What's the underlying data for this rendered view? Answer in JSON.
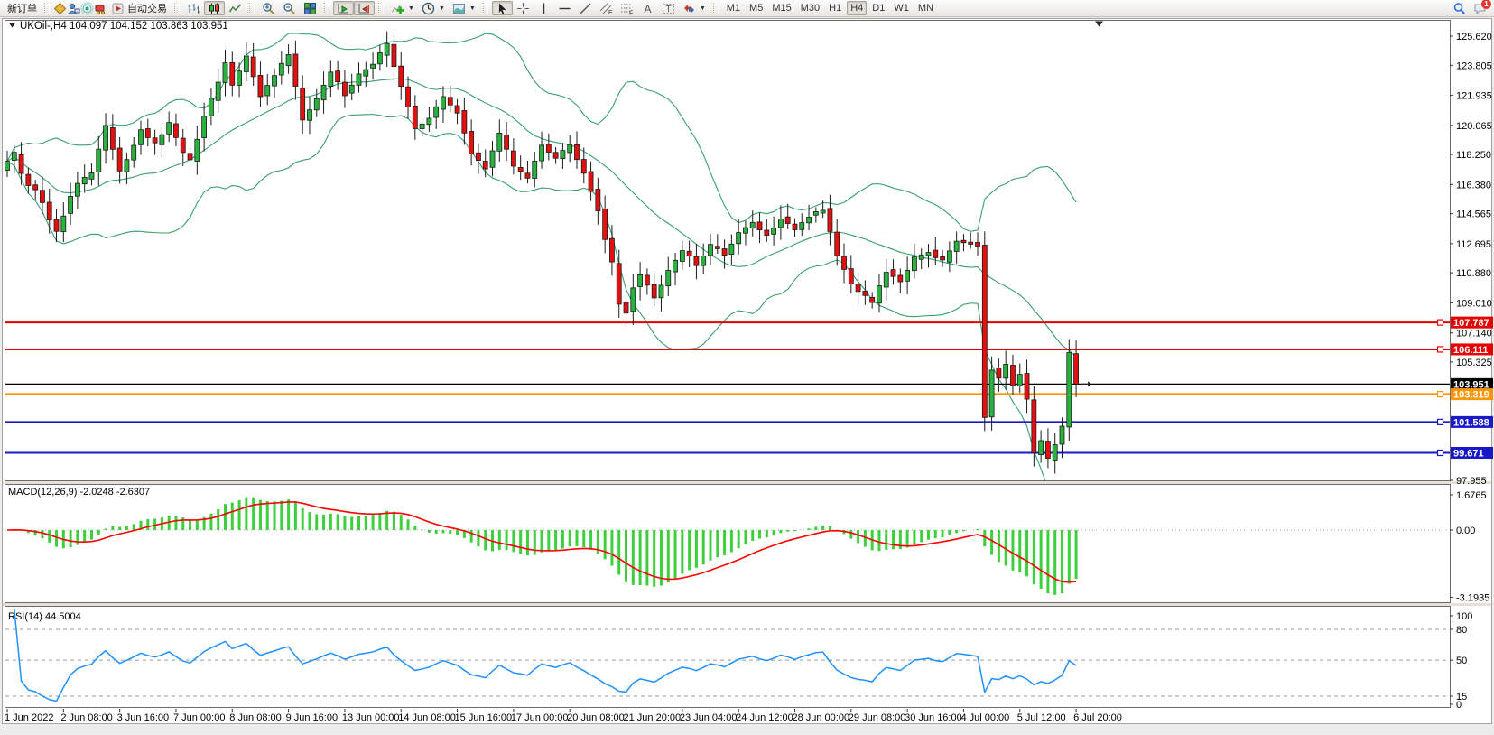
{
  "toolbar": {
    "new_order_label": "新订单",
    "autotrading_label": "自动交易",
    "timeframes": [
      "M1",
      "M5",
      "M15",
      "M30",
      "H1",
      "H4",
      "D1",
      "W1",
      "MN"
    ],
    "active_timeframe": "H4",
    "notification_badge": "1",
    "icons": [
      "profiles-icon",
      "terminal-icon",
      "signals-icon",
      "market-icon",
      "autotrading-play-icon",
      "bar-chart-icon",
      "candlestick-chart-icon",
      "line-chart-icon",
      "zoom-in-icon",
      "zoom-out-icon",
      "tile-windows-icon",
      "auto-scroll-icon",
      "chart-shift-icon",
      "add-indicator-icon",
      "periods-icon",
      "templates-icon",
      "cursor-icon",
      "crosshair-icon",
      "vertical-line-icon",
      "horizontal-line-icon",
      "trendline-icon",
      "equidistant-channel-icon",
      "fibonacci-icon",
      "text-icon",
      "text-label-icon",
      "arrows-icon",
      "search-icon",
      "chat-icon"
    ]
  },
  "chart_data": {
    "type": "candlestick",
    "symbol": "UKOil-",
    "timeframe": "H4",
    "title_line": "UKOil-,H4 104.097 104.152 103.863 103.951",
    "ohlc_display": {
      "open": "104.097",
      "high": "104.152",
      "low": "103.863",
      "close": "103.951"
    },
    "current_price": 103.951,
    "bars_count": 153,
    "label_every_n_bars": 8,
    "grid": "off",
    "price_axis_ticks": [
      "125.620",
      "123.805",
      "121.935",
      "120.065",
      "118.250",
      "116.380",
      "114.565",
      "112.695",
      "110.880",
      "109.010",
      "107.140",
      "105.325",
      "97.955"
    ],
    "time_axis_labels": [
      "1 Jun 2022",
      "2 Jun 08:00",
      "3 Jun 16:00",
      "7 Jun 00:00",
      "8 Jun 08:00",
      "9 Jun 16:00",
      "13 Jun 00:00",
      "14 Jun 08:00",
      "15 Jun 16:00",
      "17 Jun 00:00",
      "20 Jun 08:00",
      "21 Jun 20:00",
      "23 Jun 04:00",
      "24 Jun 12:00",
      "28 Jun 00:00",
      "29 Jun 08:00",
      "30 Jun 16:00",
      "4 Jul 00:00",
      "5 Jul 12:00",
      "6 Jul 20:00"
    ],
    "horizontal_lines": [
      {
        "price": 107.787,
        "label": "107.787",
        "color": "#e60000",
        "width": 2,
        "handle": true
      },
      {
        "price": 106.111,
        "label": "106.111",
        "color": "#e60000",
        "width": 2,
        "handle": true
      },
      {
        "price": 103.951,
        "label": "103.951",
        "color": "#000000",
        "width": 1.2,
        "handle": false,
        "is_current_price": true
      },
      {
        "price": 103.319,
        "label": "103.319",
        "color": "#ff9500",
        "width": 2.5,
        "handle": true
      },
      {
        "price": 101.588,
        "label": "101.588",
        "color": "#1919c8",
        "width": 2,
        "handle": true
      },
      {
        "price": 99.671,
        "label": "99.671",
        "color": "#1919c8",
        "width": 2,
        "handle": true
      }
    ],
    "bollinger": {
      "period": 20,
      "deviation": 2,
      "color": "#3a9e70"
    },
    "candle_colors": {
      "bull": "#27b33e",
      "bear": "#e60f0f",
      "outline": "#1b1b1b"
    },
    "price_trajectory_anchors": [
      [
        0,
        117.2
      ],
      [
        1,
        117.9
      ],
      [
        2,
        118.3
      ],
      [
        3,
        117.0
      ],
      [
        4,
        116.3
      ],
      [
        5,
        116.0
      ],
      [
        6,
        115.2
      ],
      [
        7,
        114.2
      ],
      [
        8,
        113.4
      ],
      [
        9,
        114.5
      ],
      [
        10,
        115.6
      ],
      [
        11,
        116.4
      ],
      [
        13,
        117.1
      ],
      [
        15,
        120.0
      ],
      [
        16,
        118.6
      ],
      [
        17,
        117.2
      ],
      [
        18,
        117.9
      ],
      [
        20,
        119.8
      ],
      [
        22,
        118.9
      ],
      [
        24,
        120.2
      ],
      [
        26,
        118.3
      ],
      [
        27,
        117.9
      ],
      [
        29,
        120.6
      ],
      [
        31,
        122.8
      ],
      [
        32,
        123.9
      ],
      [
        33,
        122.6
      ],
      [
        35,
        124.3
      ],
      [
        37,
        121.9
      ],
      [
        39,
        123.2
      ],
      [
        41,
        124.5
      ],
      [
        43,
        120.4
      ],
      [
        45,
        121.7
      ],
      [
        47,
        123.4
      ],
      [
        49,
        122.0
      ],
      [
        51,
        123.2
      ],
      [
        53,
        123.9
      ],
      [
        55,
        125.1
      ],
      [
        57,
        122.5
      ],
      [
        59,
        119.9
      ],
      [
        61,
        120.5
      ],
      [
        63,
        121.8
      ],
      [
        65,
        120.9
      ],
      [
        67,
        118.3
      ],
      [
        69,
        117.4
      ],
      [
        71,
        119.5
      ],
      [
        73,
        117.5
      ],
      [
        75,
        116.8
      ],
      [
        77,
        118.8
      ],
      [
        79,
        118.0
      ],
      [
        81,
        118.9
      ],
      [
        83,
        117.1
      ],
      [
        84,
        116.0
      ],
      [
        85,
        114.8
      ],
      [
        86,
        113.0
      ],
      [
        87,
        111.5
      ],
      [
        88,
        109.0
      ],
      [
        89,
        108.4
      ],
      [
        90,
        110.0
      ],
      [
        91,
        110.8
      ],
      [
        93,
        109.3
      ],
      [
        95,
        111.0
      ],
      [
        97,
        112.3
      ],
      [
        99,
        111.4
      ],
      [
        101,
        112.6
      ],
      [
        103,
        112.0
      ],
      [
        105,
        113.3
      ],
      [
        107,
        114.0
      ],
      [
        109,
        113.2
      ],
      [
        111,
        114.3
      ],
      [
        113,
        113.6
      ],
      [
        115,
        114.4
      ],
      [
        117,
        114.8
      ],
      [
        119,
        112.0
      ],
      [
        121,
        110.2
      ],
      [
        123,
        109.4
      ],
      [
        124,
        109.0
      ],
      [
        126,
        111.0
      ],
      [
        128,
        110.4
      ],
      [
        130,
        111.8
      ],
      [
        132,
        112.2
      ],
      [
        134,
        111.6
      ],
      [
        136,
        112.9
      ],
      [
        138,
        112.7
      ],
      [
        139,
        112.6
      ],
      [
        140,
        101.9
      ],
      [
        141,
        104.9
      ],
      [
        142,
        104.3
      ],
      [
        143,
        105.2
      ],
      [
        144,
        103.8
      ],
      [
        145,
        104.6
      ],
      [
        146,
        103.0
      ],
      [
        147,
        99.6
      ],
      [
        148,
        100.4
      ],
      [
        149,
        99.3
      ],
      [
        150,
        100.2
      ],
      [
        151,
        101.3
      ],
      [
        152,
        105.9
      ],
      [
        153,
        103.951
      ]
    ],
    "macd": {
      "label": "MACD(12,26,9) -2.0248 -2.6307",
      "params": "12,26,9",
      "value": -2.0248,
      "signal": -2.6307,
      "scale_ticks": [
        "1.6765",
        "0.00",
        "-3.1935"
      ],
      "histogram_color": "#3cd03c",
      "signal_color": "#ff0000"
    },
    "rsi": {
      "label": "RSI(14) 44.5004",
      "period": 14,
      "value": 44.5004,
      "scale_ticks": [
        "100",
        "80",
        "50",
        "15",
        "0"
      ],
      "levels": [
        80,
        50,
        15
      ],
      "line_color": "#1e90ff"
    }
  }
}
